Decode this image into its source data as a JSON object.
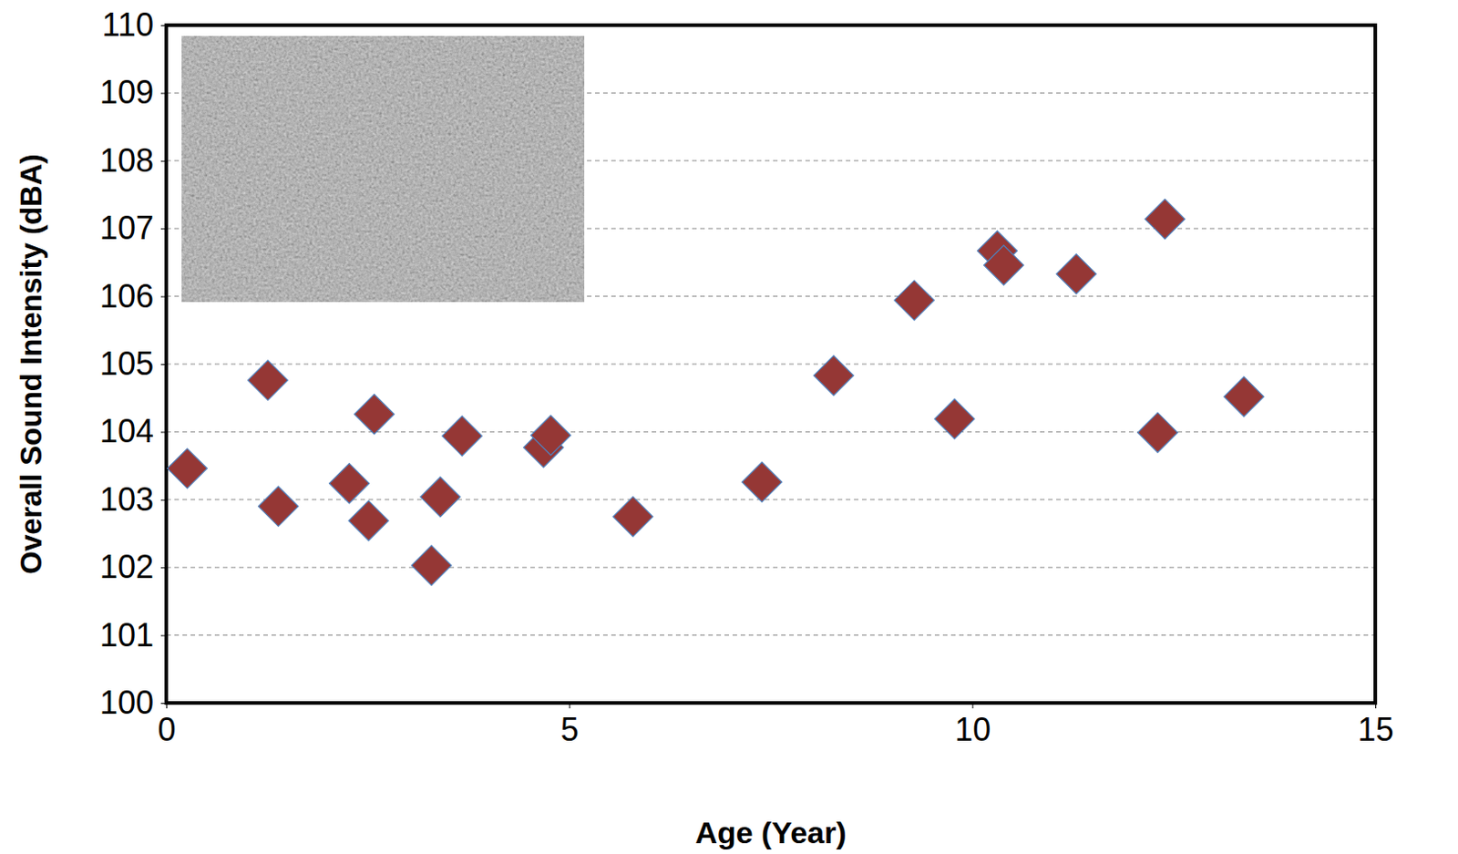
{
  "chart_data": {
    "type": "scatter",
    "x_label": "Age (Year)",
    "y_label": "Overall Sound Intensity (dBA)",
    "x": [
      0.26,
      1.26,
      1.39,
      2.27,
      2.58,
      2.51,
      3.29,
      3.4,
      3.67,
      4.68,
      4.77,
      5.79,
      7.39,
      8.28,
      9.28,
      9.78,
      10.31,
      10.39,
      11.29,
      12.3,
      12.39,
      13.37
    ],
    "values": [
      103.46,
      104.76,
      102.9,
      103.24,
      104.26,
      102.69,
      102.03,
      103.04,
      103.94,
      103.77,
      103.95,
      102.75,
      103.26,
      104.83,
      105.94,
      104.19,
      106.67,
      106.46,
      106.33,
      103.99,
      107.14,
      104.52
    ],
    "color": "#953735",
    "marker": "diamond",
    "xlim": [
      0,
      15
    ],
    "xticks": [
      0,
      5,
      10,
      15
    ],
    "ylim": [
      100,
      110
    ],
    "yticks": [
      100,
      101,
      102,
      103,
      104,
      105,
      106,
      107,
      108,
      109,
      110
    ],
    "grid": true
  }
}
